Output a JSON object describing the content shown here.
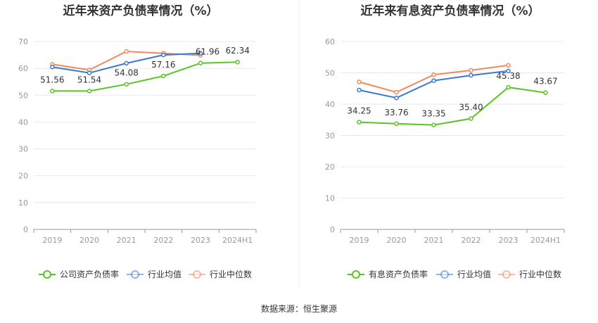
{
  "source": "数据来源：恒生聚源",
  "colors": {
    "company": "#5ac426",
    "average": "#3a78d6",
    "median": "#f08a5d",
    "grid": "#e8e8e8",
    "axis": "#999999"
  },
  "chart_data": [
    {
      "type": "line",
      "title": "近年来资产负债率情况（%）",
      "categories": [
        "2019",
        "2020",
        "2021",
        "2022",
        "2023",
        "2024H1"
      ],
      "ylim": [
        0,
        70
      ],
      "yticks": [
        0,
        10,
        20,
        30,
        40,
        50,
        60,
        70
      ],
      "grid": true,
      "legend_position": "bottom",
      "series": [
        {
          "name": "公司资产负债率",
          "color": "#5ac426",
          "values": [
            51.56,
            51.54,
            54.08,
            57.16,
            61.96,
            62.34
          ],
          "labels": [
            "51.56",
            "51.54",
            "54.08",
            "57.16",
            "61.96",
            "62.34"
          ]
        },
        {
          "name": "行业均值",
          "color": "#3a78d6",
          "values": [
            60.5,
            58.3,
            61.9,
            65.0,
            65.6,
            null
          ]
        },
        {
          "name": "行业中位数",
          "color": "#f08a5d",
          "values": [
            61.5,
            59.4,
            66.3,
            65.6,
            64.9,
            null
          ]
        }
      ]
    },
    {
      "type": "line",
      "title": "近年来有息资产负债率情况（%）",
      "categories": [
        "2019",
        "2020",
        "2021",
        "2022",
        "2023",
        "2024H1"
      ],
      "ylim": [
        0,
        60
      ],
      "yticks": [
        0,
        10,
        20,
        30,
        40,
        50,
        60
      ],
      "grid": true,
      "legend_position": "bottom",
      "series": [
        {
          "name": "有息资产负债率",
          "color": "#5ac426",
          "values": [
            34.25,
            33.76,
            33.35,
            35.4,
            45.38,
            43.67
          ],
          "labels": [
            "34.25",
            "33.76",
            "33.35",
            "35.40",
            "45.38",
            "43.67"
          ]
        },
        {
          "name": "行业均值",
          "color": "#3a78d6",
          "values": [
            44.5,
            42.0,
            47.5,
            49.2,
            50.6,
            null
          ]
        },
        {
          "name": "行业中位数",
          "color": "#f08a5d",
          "values": [
            47.1,
            43.8,
            49.4,
            50.8,
            52.4,
            null
          ]
        }
      ]
    }
  ]
}
